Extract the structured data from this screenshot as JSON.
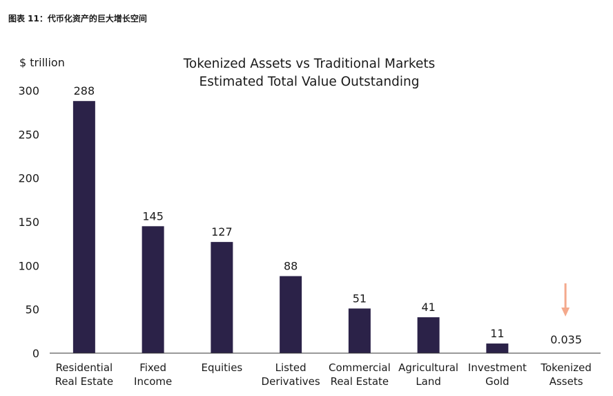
{
  "caption": "图表 11：代币化资产的巨大增长空间",
  "chart_data": {
    "type": "bar",
    "title": "Tokenized Assets vs Traditional Markets",
    "subtitle": "Estimated Total Value Outstanding",
    "ylabel": "$ trillion",
    "xlabel": "",
    "ylim": [
      0,
      300
    ],
    "yticks": [
      0,
      50,
      100,
      150,
      200,
      250,
      300
    ],
    "grid": false,
    "categories": [
      [
        "Residential",
        "Real Estate"
      ],
      [
        "Fixed",
        "Income"
      ],
      [
        "Equities"
      ],
      [
        "Listed",
        "Derivatives"
      ],
      [
        "Commercial",
        "Real Estate"
      ],
      [
        "Agricultural",
        "Land"
      ],
      [
        "Investment",
        "Gold"
      ],
      [
        "Tokenized",
        "Assets"
      ]
    ],
    "values": [
      288,
      145,
      127,
      88,
      51,
      41,
      11,
      0.035
    ],
    "value_labels": [
      "288",
      "145",
      "127",
      "88",
      "51",
      "41",
      "11",
      "0.035"
    ],
    "annotation": {
      "type": "arrow-down",
      "target_category": "Tokenized Assets",
      "color": "#f4a98c"
    },
    "colors": {
      "bar": "#2b2248",
      "axis": "#333333",
      "text": "#1a1a1a"
    }
  }
}
